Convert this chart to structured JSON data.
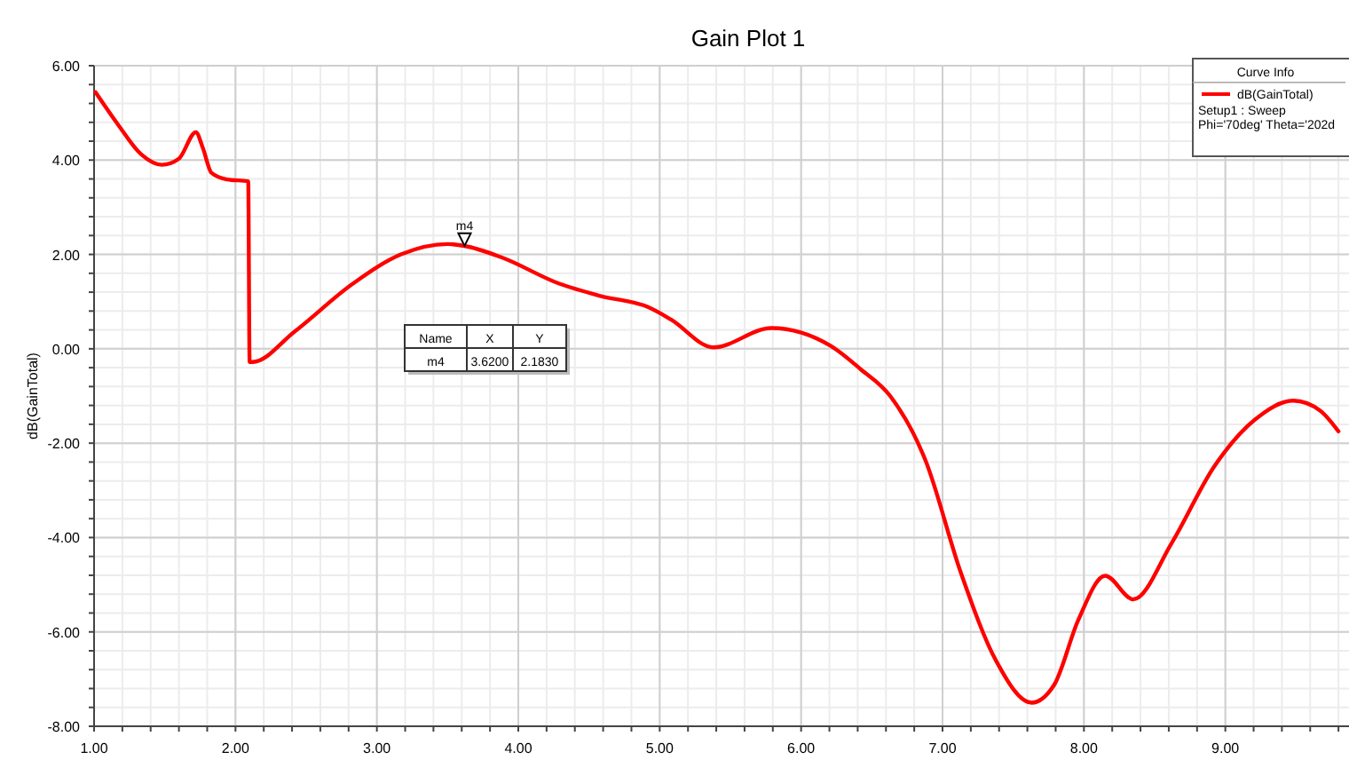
{
  "chart_data": {
    "type": "line",
    "title": "Gain Plot 1",
    "ylabel": "dB(GainTotal)",
    "legend_title": "Curve Info",
    "legend": "top right",
    "grid": true,
    "x": [
      1.01,
      1.17,
      1.33,
      1.48,
      1.6,
      1.72,
      1.77,
      1.83,
      1.94,
      2.09,
      2.1,
      2.12,
      2.42,
      2.83,
      3.17,
      3.5,
      3.62,
      3.88,
      4.29,
      4.58,
      4.92,
      5.08,
      5.38,
      5.79,
      6.21,
      6.42,
      6.63,
      6.88,
      7.13,
      7.38,
      7.63,
      7.79,
      7.96,
      8.15,
      8.35,
      8.62,
      8.92,
      9.21,
      9.48,
      9.67,
      9.8
    ],
    "series": [
      {
        "name": "dB(GainTotal)",
        "color": "#ff0000",
        "values": [
          5.44,
          4.75,
          4.13,
          3.9,
          4.03,
          4.59,
          4.25,
          3.73,
          3.59,
          3.55,
          -0.28,
          -0.28,
          0.37,
          1.38,
          2.0,
          2.22,
          2.18,
          1.94,
          1.38,
          1.12,
          0.88,
          0.62,
          0.03,
          0.44,
          0.06,
          -0.43,
          -1.0,
          -2.37,
          -4.75,
          -6.62,
          -7.5,
          -7.12,
          -5.75,
          -4.81,
          -5.31,
          -4.12,
          -2.5,
          -1.5,
          -1.1,
          -1.31,
          -1.75
        ]
      }
    ],
    "xlim": [
      1,
      10
    ],
    "xticks": [
      {
        "value": 1,
        "label": "1.00"
      },
      {
        "value": 2,
        "label": "2.00"
      },
      {
        "value": 3,
        "label": "3.00"
      },
      {
        "value": 4,
        "label": "4.00"
      },
      {
        "value": 5,
        "label": "5.00"
      },
      {
        "value": 6,
        "label": "6.00"
      },
      {
        "value": 7,
        "label": "7.00"
      },
      {
        "value": 8,
        "label": "8.00"
      },
      {
        "value": 9,
        "label": "9.00"
      }
    ],
    "ylim": [
      -8,
      6
    ],
    "yticks": [
      {
        "value": -8,
        "label": "-8.00"
      },
      {
        "value": -6,
        "label": "-6.00"
      },
      {
        "value": -4,
        "label": "-4.00"
      },
      {
        "value": -2,
        "label": "-2.00"
      },
      {
        "value": 0,
        "label": "0.00"
      },
      {
        "value": 2,
        "label": "2.00"
      },
      {
        "value": 4,
        "label": "4.00"
      },
      {
        "value": 6,
        "label": "6.00"
      }
    ],
    "annotations": [
      {
        "text": "m4",
        "x": 3.62,
        "y": 2.183
      },
      "Name",
      "X",
      "Y",
      "m4",
      "3.6200",
      "2.1830",
      "Setup1 : Sweep",
      "Phi='70deg' Theta='202d"
    ]
  }
}
